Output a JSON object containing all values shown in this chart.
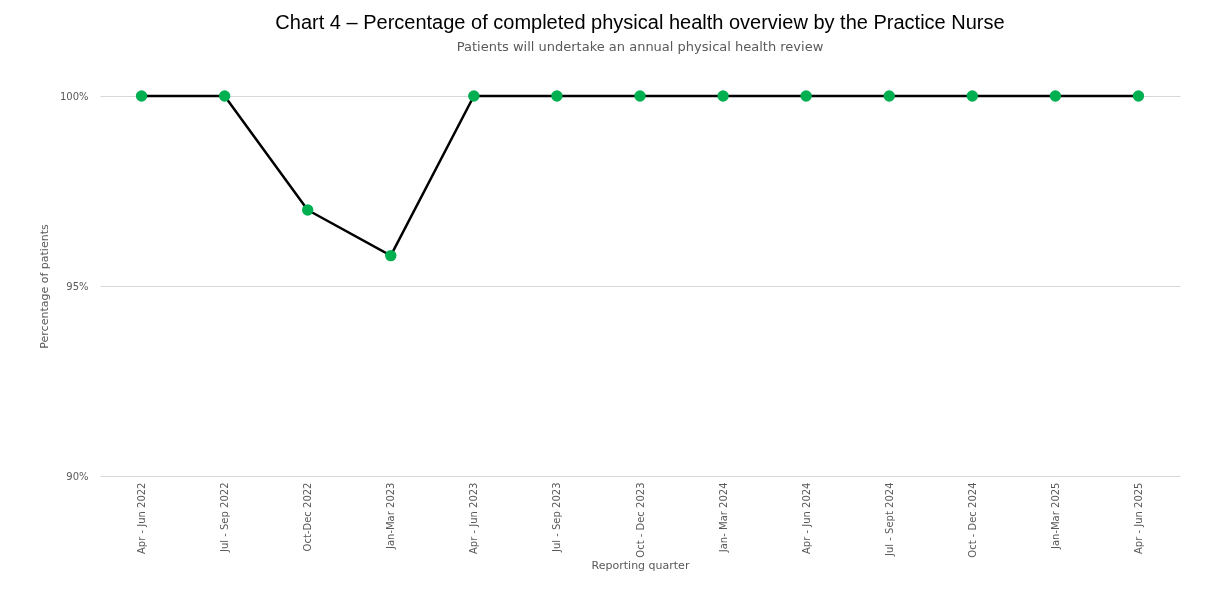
{
  "chart_data": {
    "type": "line",
    "title": "Chart 4 – Percentage of completed physical health overview by the Practice Nurse",
    "subtitle": "Patients will undertake an annual physical health review",
    "xlabel": "Reporting quarter",
    "ylabel": "Percentage of patients",
    "categories": [
      "Apr - Jun 2022",
      "Jul - Sep 2022",
      "Oct-Dec 2022",
      "Jan-Mar 2023",
      "Apr - Jun 2023",
      "Jul - Sep 2023",
      "Oct - Dec 2023",
      "Jan- Mar 2024",
      "Apr - Jun 2024",
      "Jul - Sept 2024",
      "Oct - Dec 2024",
      "Jan-Mar 2025",
      "Apr - Jun 2025"
    ],
    "series": [
      {
        "color": "#000000",
        "colors": [
          "#00b050",
          "#00b050",
          "#00b050",
          "#00b050",
          "#00b050",
          "#00b050",
          "#00b050",
          "#00b050",
          "#00b050",
          "#00b050",
          "#00b050",
          "#00b050",
          "#00b050"
        ],
        "values": [
          100,
          100,
          97.0,
          95.8,
          100,
          100,
          100,
          100,
          100,
          100,
          100,
          100,
          100
        ]
      }
    ],
    "ylim": [
      90,
      100
    ],
    "yticks": [
      {
        "value": 90,
        "label": "90%"
      },
      {
        "value": 95,
        "label": "95%"
      },
      {
        "value": 100,
        "label": "100%"
      }
    ],
    "grid": "y",
    "marker": "circle",
    "line_style": "solid"
  }
}
